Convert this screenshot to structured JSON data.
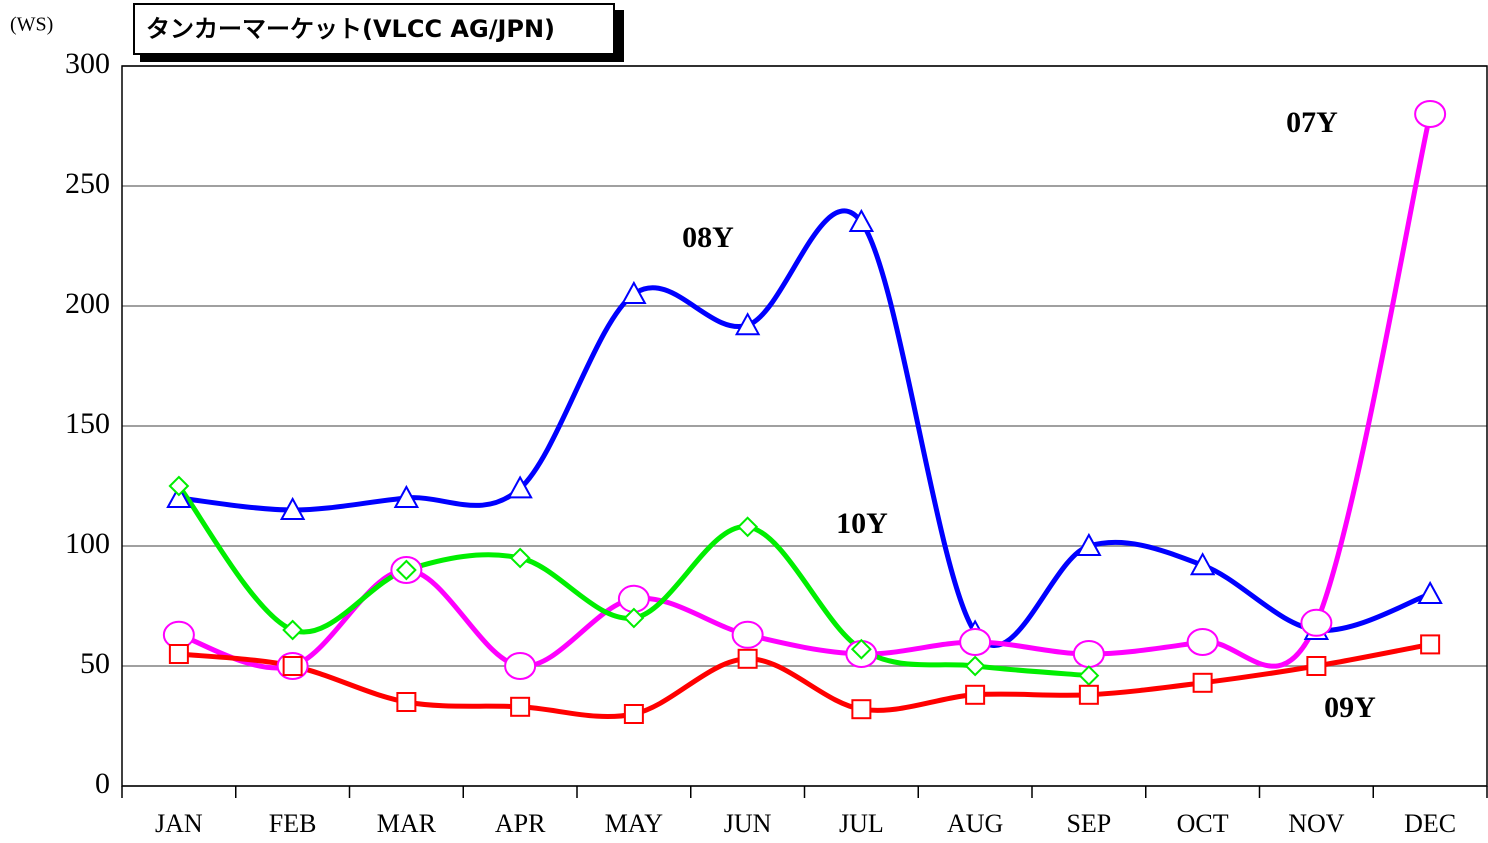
{
  "chart_data": {
    "type": "line",
    "title": "タンカーマーケット(VLCC AG/JPN)",
    "y_label": "(WS)",
    "categories": [
      "JAN",
      "FEB",
      "MAR",
      "APR",
      "MAY",
      "JUN",
      "JUL",
      "AUG",
      "SEP",
      "OCT",
      "NOV",
      "DEC"
    ],
    "ylim": [
      0,
      300
    ],
    "yticks": [
      0,
      50,
      100,
      150,
      200,
      250,
      300
    ],
    "grid": true,
    "series": [
      {
        "name": "07Y",
        "color": "#ff00ff",
        "marker": "circle",
        "values": [
          63,
          50,
          90,
          50,
          78,
          63,
          55,
          60,
          55,
          60,
          68,
          280
        ]
      },
      {
        "name": "08Y",
        "color": "#0000ff",
        "marker": "triangle",
        "values": [
          120,
          115,
          120,
          124,
          205,
          192,
          235,
          64,
          100,
          92,
          65,
          80
        ]
      },
      {
        "name": "09Y",
        "color": "#ff0000",
        "marker": "square",
        "values": [
          55,
          50,
          35,
          33,
          30,
          53,
          32,
          38,
          38,
          43,
          50,
          59
        ]
      },
      {
        "name": "10Y",
        "color": "#00ee00",
        "marker": "diamond",
        "values": [
          125,
          65,
          90,
          95,
          70,
          108,
          57,
          50,
          46,
          null,
          null,
          null
        ]
      }
    ]
  }
}
